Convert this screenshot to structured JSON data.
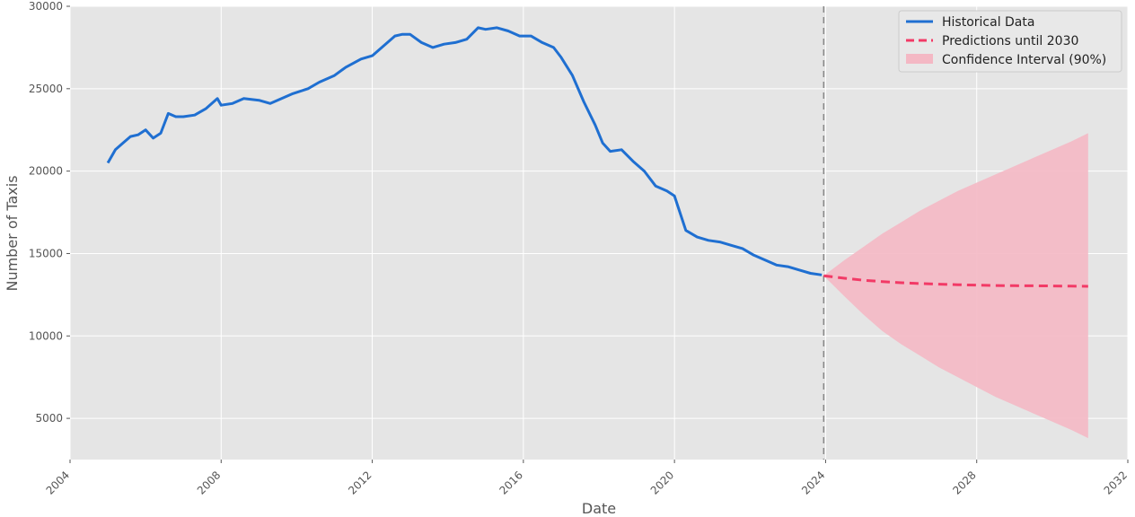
{
  "chart_data": {
    "type": "line",
    "title": "",
    "xlabel": "Date",
    "ylabel": "Number of Taxis",
    "xlim": [
      2004.0,
      2032.0
    ],
    "ylim": [
      2500,
      30000
    ],
    "x_ticks": [
      2004,
      2008,
      2012,
      2016,
      2020,
      2024,
      2028,
      2032
    ],
    "y_ticks": [
      5000,
      10000,
      15000,
      20000,
      25000,
      30000
    ],
    "grid": true,
    "legend_position": "top-right",
    "vertical_marker": {
      "x": 2023.95,
      "style": "dashed",
      "color": "#888888"
    },
    "series": [
      {
        "name": "Historical Data",
        "type": "line",
        "color": "#1f6fd1",
        "style": "solid",
        "x": [
          2005.0,
          2005.2,
          2005.4,
          2005.6,
          2005.8,
          2006.0,
          2006.2,
          2006.4,
          2006.6,
          2006.8,
          2007.0,
          2007.3,
          2007.6,
          2007.9,
          2008.0,
          2008.3,
          2008.6,
          2009.0,
          2009.3,
          2009.6,
          2009.9,
          2010.3,
          2010.6,
          2011.0,
          2011.3,
          2011.7,
          2012.0,
          2012.3,
          2012.6,
          2012.8,
          2013.0,
          2013.3,
          2013.6,
          2013.9,
          2014.2,
          2014.5,
          2014.8,
          2015.0,
          2015.3,
          2015.6,
          2015.9,
          2016.2,
          2016.5,
          2016.8,
          2017.0,
          2017.3,
          2017.6,
          2017.9,
          2018.1,
          2018.3,
          2018.6,
          2018.9,
          2019.2,
          2019.5,
          2019.8,
          2020.0,
          2020.1,
          2020.3,
          2020.6,
          2020.9,
          2021.2,
          2021.5,
          2021.8,
          2022.1,
          2022.4,
          2022.7,
          2023.0,
          2023.3,
          2023.6,
          2023.9
        ],
        "y": [
          20500,
          21300,
          21700,
          22100,
          22200,
          22500,
          22000,
          22300,
          23500,
          23300,
          23300,
          23400,
          23800,
          24400,
          24000,
          24100,
          24400,
          24300,
          24100,
          24400,
          24700,
          25000,
          25400,
          25800,
          26300,
          26800,
          27000,
          27600,
          28200,
          28300,
          28300,
          27800,
          27500,
          27700,
          27800,
          28000,
          28700,
          28600,
          28700,
          28500,
          28200,
          28200,
          27800,
          27500,
          26900,
          25800,
          24200,
          22800,
          21700,
          21200,
          21300,
          20600,
          20000,
          19100,
          18800,
          18500,
          17800,
          16400,
          16000,
          15800,
          15700,
          15500,
          15300,
          14900,
          14600,
          14300,
          14200,
          14000,
          13800,
          13700
        ]
      },
      {
        "name": "Predictions until 2030",
        "type": "line",
        "color": "#f23a66",
        "style": "dashed",
        "x": [
          2023.95,
          2024.5,
          2025.0,
          2025.5,
          2026.0,
          2026.5,
          2027.0,
          2027.5,
          2028.0,
          2028.5,
          2029.0,
          2029.5,
          2030.0,
          2030.5,
          2030.95
        ],
        "y": [
          13650,
          13500,
          13380,
          13300,
          13230,
          13180,
          13140,
          13110,
          13080,
          13060,
          13050,
          13040,
          13030,
          13020,
          13010
        ]
      },
      {
        "name": "Confidence Interval (90%)",
        "type": "area",
        "color": "#f4b8c4",
        "x": [
          2023.95,
          2024.5,
          2025.0,
          2025.5,
          2026.0,
          2026.5,
          2027.0,
          2027.5,
          2028.0,
          2028.5,
          2029.0,
          2029.5,
          2030.0,
          2030.5,
          2030.95
        ],
        "upper": [
          13650,
          14600,
          15400,
          16200,
          16900,
          17600,
          18200,
          18800,
          19300,
          19800,
          20300,
          20800,
          21300,
          21800,
          22300
        ],
        "lower": [
          13650,
          12400,
          11300,
          10300,
          9500,
          8800,
          8100,
          7500,
          6900,
          6300,
          5800,
          5300,
          4800,
          4300,
          3800
        ]
      }
    ]
  }
}
